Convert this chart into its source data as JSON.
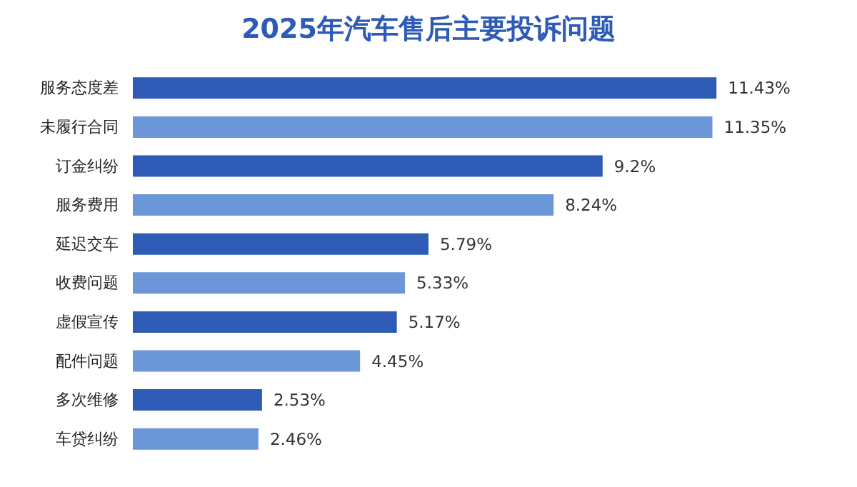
{
  "chart_data": {
    "type": "bar",
    "orientation": "horizontal",
    "title": "2025年汽车售后主要投诉问题",
    "categories": [
      "服务态度差",
      "未履行合同",
      "订金纠纷",
      "服务费用",
      "延迟交车",
      "收费问题",
      "虚假宣传",
      "配件问题",
      "多次维修",
      "车贷纠纷"
    ],
    "values": [
      11.43,
      11.35,
      9.2,
      8.24,
      5.79,
      5.33,
      5.17,
      4.45,
      2.53,
      2.46
    ],
    "value_labels": [
      "11.43%",
      "11.35%",
      "9.2%",
      "8.24%",
      "5.79%",
      "5.33%",
      "5.17%",
      "4.45%",
      "2.53%",
      "2.46%"
    ],
    "colors": [
      "#2d5bb5",
      "#6b96d8",
      "#2d5bb5",
      "#6b96d8",
      "#2d5bb5",
      "#6b96d8",
      "#2d5bb5",
      "#6b96d8",
      "#2d5bb5",
      "#6b96d8"
    ]
  }
}
